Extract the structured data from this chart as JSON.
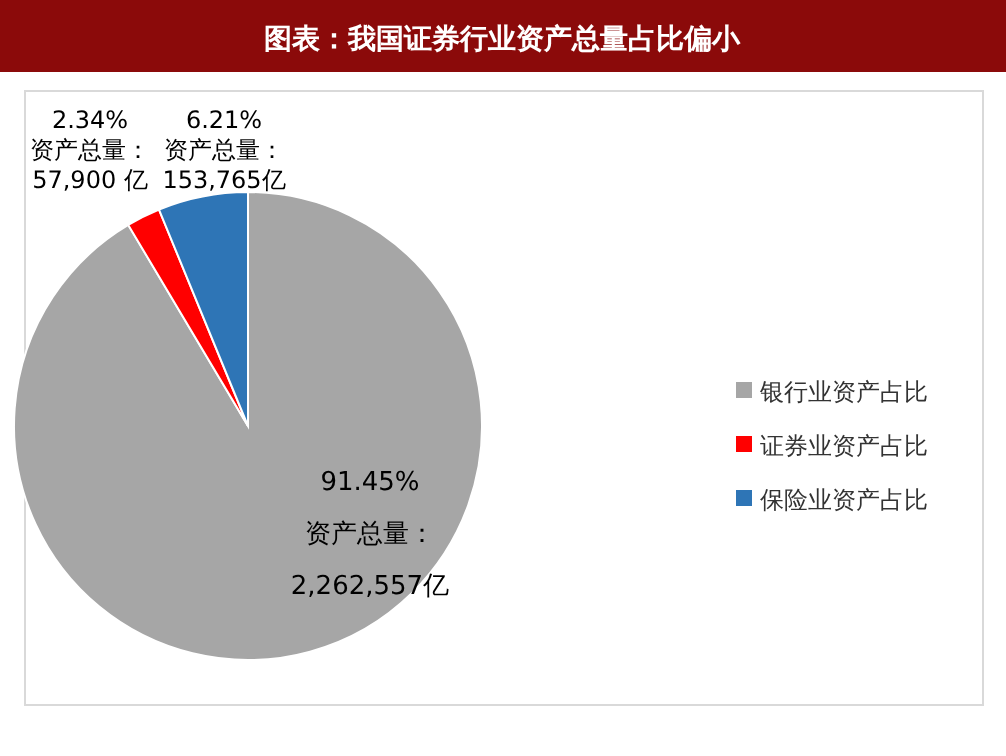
{
  "chart_data": {
    "type": "pie",
    "title": "图表：我国证券行业资产总量占比偏小",
    "categories": [
      "银行业资产占比",
      "证券业资产占比",
      "保险业资产占比"
    ],
    "values": [
      91.45,
      2.34,
      6.21
    ],
    "colors": [
      "#a6a6a6",
      "#ff0000",
      "#2e75b6"
    ],
    "value_labels": [
      "91.45%\n资产总量：\n2,262,557亿",
      "2.34%\n资产总量：\n57,900 亿",
      "6.21%\n资产总量：\n153,765亿"
    ],
    "legend": "right"
  }
}
